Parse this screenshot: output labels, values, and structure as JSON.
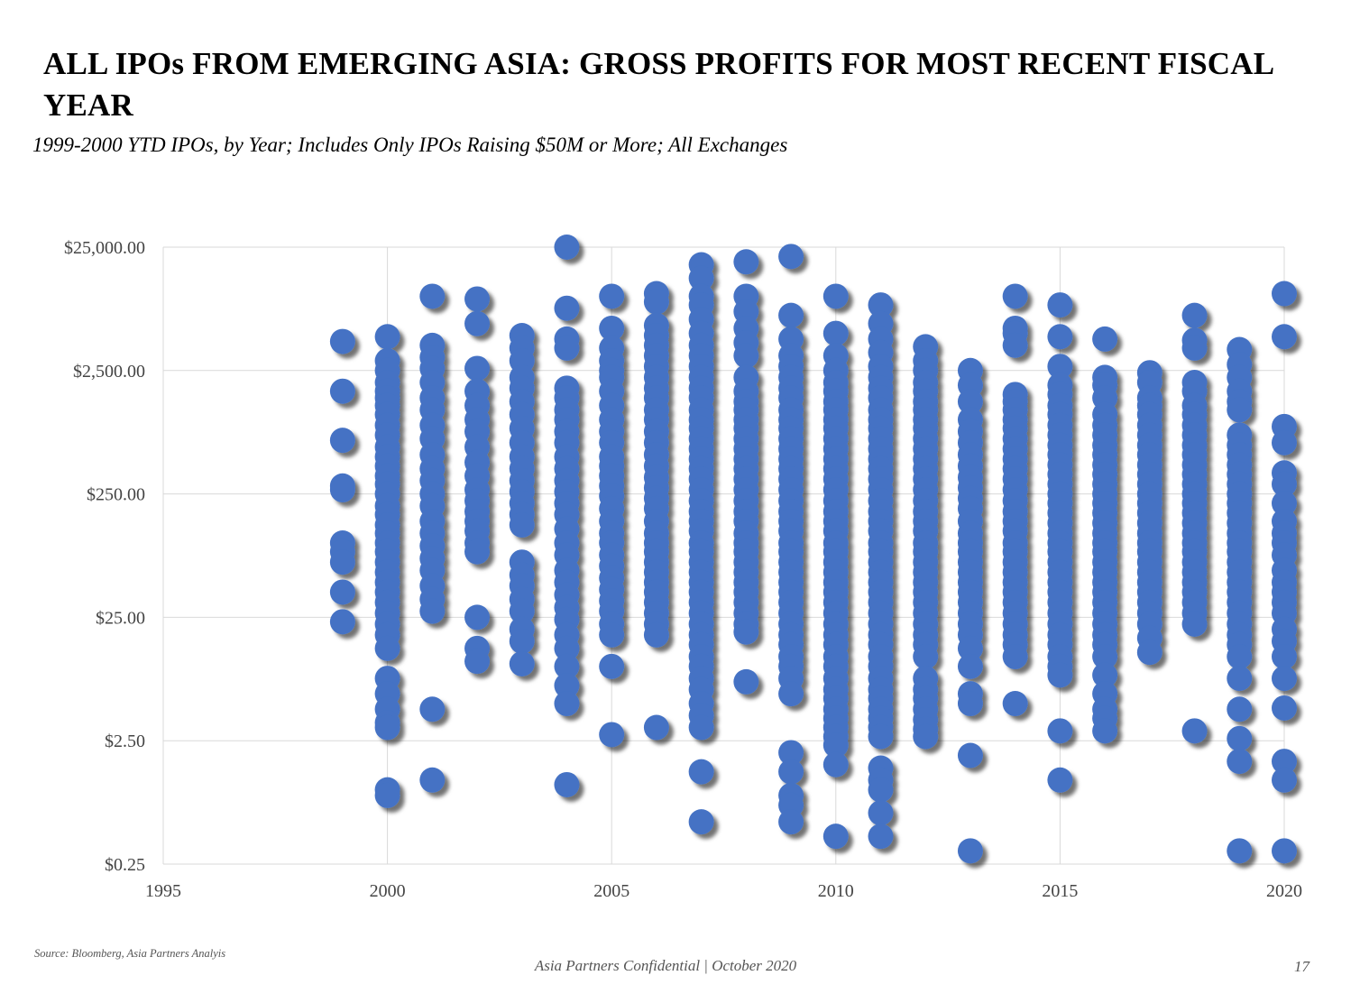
{
  "slide": {
    "title": "ALL IPOs FROM EMERGING ASIA: GROSS PROFITS FOR MOST RECENT FISCAL YEAR",
    "subtitle": "1999-2000 YTD IPOs, by Year; Includes Only IPOs Raising $50M or More; All Exchanges",
    "source": "Source: Bloomberg, Asia Partners Analyis",
    "footer": "Asia Partners Confidential | October 2020",
    "page_number": "17"
  },
  "chart_data": {
    "type": "scatter",
    "title": "",
    "xlabel": "",
    "ylabel": "",
    "x_ticks": [
      1995,
      2000,
      2005,
      2010,
      2015,
      2020
    ],
    "y_ticks": [
      0.25,
      2.5,
      25,
      250,
      2500,
      25000
    ],
    "y_tick_labels": [
      "$0.25",
      "$2.50",
      "$25.00",
      "$250.00",
      "$2,500.00",
      "$25,000.00"
    ],
    "xlim": [
      1995,
      2020
    ],
    "ylim": [
      0.25,
      25000
    ],
    "y_scale": "log",
    "grid": true,
    "legend": "none",
    "marker_color": "#4472C4",
    "series": [
      {
        "years": [
          {
            "x": 1999,
            "y": [
              4300,
              1700,
              680,
              290,
              270,
              100,
              85,
              70,
              40,
              23
            ]
          },
          {
            "x": 2000,
            "y": [
              4700,
              3000,
              2500,
              2000,
              1700,
              1500,
              1300,
              1100,
              900,
              750,
              600,
              500,
              420,
              350,
              300,
              250,
              200,
              170,
              140,
              120,
              100,
              85,
              70,
              58,
              48,
              40,
              33,
              27,
              22,
              18,
              14,
              8,
              6,
              4.5,
              3.5,
              3.2,
              1.0,
              0.9
            ]
          },
          {
            "x": 2001,
            "y": [
              10000,
              4000,
              3200,
              2600,
              2000,
              1500,
              1200,
              900,
              700,
              520,
              400,
              320,
              250,
              200,
              150,
              120,
              95,
              75,
              60,
              45,
              35,
              28,
              4.5,
              1.2
            ]
          },
          {
            "x": 2002,
            "y": [
              9500,
              6000,
              2600,
              1700,
              1300,
              1000,
              800,
              600,
              450,
              350,
              270,
              220,
              180,
              150,
              125,
              100,
              85,
              25,
              14,
              11
            ]
          },
          {
            "x": 2003,
            "y": [
              4800,
              3800,
              3000,
              2200,
              1800,
              1400,
              1100,
              850,
              650,
              500,
              400,
              320,
              260,
              210,
              170,
              140,
              70,
              55,
              45,
              35,
              28,
              20,
              16,
              10.5
            ]
          },
          {
            "x": 2004,
            "y": [
              25000,
              8000,
              4500,
              3800,
              1800,
              1500,
              1200,
              1000,
              800,
              650,
              500,
              400,
              320,
              260,
              210,
              170,
              130,
              100,
              80,
              60,
              48,
              38,
              30,
              24,
              18,
              14,
              10,
              7,
              5,
              1.1
            ]
          },
          {
            "x": 2005,
            "y": [
              10000,
              5500,
              3800,
              3000,
              2500,
              2200,
              1700,
              1300,
              1000,
              800,
              650,
              500,
              420,
              350,
              290,
              240,
              190,
              150,
              120,
              100,
              80,
              65,
              52,
              42,
              34,
              28,
              22,
              18,
              10,
              2.8
            ]
          },
          {
            "x": 2006,
            "y": [
              10500,
              9000,
              5800,
              4800,
              4000,
              3300,
              2700,
              2200,
              1800,
              1500,
              1200,
              1000,
              800,
              650,
              520,
              420,
              340,
              280,
              230,
              190,
              150,
              120,
              100,
              85,
              70,
              58,
              48,
              40,
              33,
              27,
              22,
              18,
              3.2
            ]
          },
          {
            "x": 2007,
            "y": [
              18000,
              14000,
              10000,
              8500,
              6500,
              5000,
              4000,
              3300,
              2700,
              2200,
              1800,
              1500,
              1200,
              1000,
              850,
              700,
              580,
              480,
              400,
              330,
              270,
              220,
              180,
              150,
              125,
              100,
              85,
              70,
              58,
              48,
              40,
              33,
              27,
              22,
              18,
              15,
              12,
              10,
              8,
              6.5,
              5,
              4,
              3.2,
              1.4,
              0.55
            ]
          },
          {
            "x": 2008,
            "y": [
              19000,
              10000,
              7500,
              5500,
              4200,
              3300,
              2200,
              1700,
              1400,
              1200,
              1000,
              850,
              700,
              580,
              480,
              400,
              330,
              270,
              220,
              180,
              150,
              120,
              100,
              85,
              70,
              58,
              48,
              40,
              33,
              27,
              22,
              19,
              7.5
            ]
          },
          {
            "x": 2009,
            "y": [
              21000,
              7000,
              4500,
              3300,
              2700,
              2200,
              1800,
              1500,
              1200,
              1000,
              850,
              700,
              580,
              480,
              400,
              330,
              270,
              220,
              180,
              150,
              125,
              100,
              85,
              70,
              58,
              48,
              40,
              33,
              27,
              22,
              18,
              15,
              12,
              10,
              8,
              6,
              2.0,
              1.4,
              0.9,
              0.75,
              0.55
            ]
          },
          {
            "x": 2010,
            "y": [
              10000,
              5000,
              3300,
              2500,
              2000,
              1700,
              1400,
              1200,
              1000,
              850,
              700,
              580,
              480,
              400,
              330,
              270,
              220,
              180,
              150,
              125,
              100,
              85,
              70,
              58,
              48,
              40,
              33,
              27,
              22,
              18,
              15,
              12,
              10,
              8,
              6.5,
              5.5,
              4.5,
              3.8,
              3.2,
              2.7,
              2.3,
              1.6,
              0.42
            ]
          },
          {
            "x": 2011,
            "y": [
              8500,
              6000,
              4500,
              3500,
              2700,
              2200,
              1800,
              1500,
              1200,
              1000,
              850,
              700,
              580,
              480,
              400,
              330,
              270,
              220,
              180,
              150,
              125,
              100,
              85,
              70,
              58,
              48,
              40,
              33,
              27,
              22,
              18,
              15,
              12,
              10,
              8,
              6.5,
              5.5,
              4.5,
              3.8,
              3.2,
              2.7,
              1.5,
              1.2,
              1.0,
              0.65,
              0.42
            ]
          },
          {
            "x": 2012,
            "y": [
              3900,
              3000,
              2500,
              2000,
              1700,
              1400,
              1200,
              1000,
              850,
              700,
              580,
              480,
              400,
              330,
              270,
              220,
              180,
              150,
              125,
              100,
              85,
              70,
              58,
              48,
              40,
              33,
              27,
              22,
              18,
              15,
              12,
              8,
              6.5,
              5.5,
              4.5,
              3.7,
              3.1,
              2.7
            ]
          },
          {
            "x": 2013,
            "y": [
              2500,
              1900,
              1400,
              1000,
              800,
              650,
              520,
              420,
              340,
              280,
              230,
              190,
              150,
              120,
              100,
              85,
              70,
              58,
              48,
              40,
              33,
              27,
              22,
              18,
              14,
              10,
              6,
              5,
              1.9,
              0.32
            ]
          },
          {
            "x": 2014,
            "y": [
              10000,
              5500,
              5000,
              4000,
              1600,
              1400,
              1200,
              1000,
              850,
              700,
              580,
              480,
              400,
              330,
              270,
              220,
              180,
              150,
              125,
              100,
              85,
              70,
              58,
              48,
              40,
              33,
              27,
              22,
              18,
              15,
              12,
              5.0
            ]
          },
          {
            "x": 2015,
            "y": [
              8500,
              4700,
              2700,
              1900,
              1600,
              1300,
              1100,
              900,
              750,
              620,
              520,
              430,
              360,
              300,
              250,
              210,
              175,
              145,
              120,
              100,
              85,
              70,
              58,
              48,
              40,
              33,
              27,
              22,
              18,
              15,
              12,
              10,
              8.5,
              3.0,
              1.2
            ]
          },
          {
            "x": 2016,
            "y": [
              4500,
              2200,
              1900,
              1500,
              1100,
              900,
              750,
              620,
              520,
              430,
              360,
              300,
              250,
              210,
              175,
              145,
              120,
              100,
              85,
              70,
              58,
              48,
              40,
              33,
              27,
              22,
              18,
              15,
              12,
              8.5,
              6,
              4.5,
              3.8,
              3.0
            ]
          },
          {
            "x": 2017,
            "y": [
              2400,
              2000,
              1500,
              1300,
              1100,
              900,
              750,
              620,
              520,
              430,
              360,
              300,
              250,
              210,
              175,
              145,
              120,
              100,
              85,
              70,
              58,
              48,
              40,
              33,
              27,
              22,
              17,
              13
            ]
          },
          {
            "x": 2018,
            "y": [
              7000,
              4400,
              3800,
              2000,
              1700,
              1300,
              1100,
              900,
              750,
              620,
              520,
              430,
              360,
              300,
              250,
              210,
              175,
              145,
              120,
              100,
              85,
              70,
              58,
              48,
              40,
              33,
              27,
              22,
              3.0
            ]
          },
          {
            "x": 2019,
            "y": [
              3700,
              2800,
              2200,
              1700,
              1400,
              1200,
              750,
              620,
              520,
              430,
              360,
              300,
              250,
              210,
              175,
              145,
              120,
              100,
              85,
              70,
              58,
              48,
              40,
              33,
              27,
              22,
              18,
              15,
              12,
              8,
              4.5,
              2.6,
              1.7,
              0.32
            ]
          },
          {
            "x": 2020,
            "y": [
              10500,
              4700,
              880,
              650,
              370,
              300,
              210,
              150,
              120,
              100,
              80,
              60,
              48,
              40,
              33,
              27,
              20,
              16,
              12,
              8,
              4.6,
              1.7,
              1.2,
              0.32
            ]
          }
        ]
      }
    ]
  }
}
